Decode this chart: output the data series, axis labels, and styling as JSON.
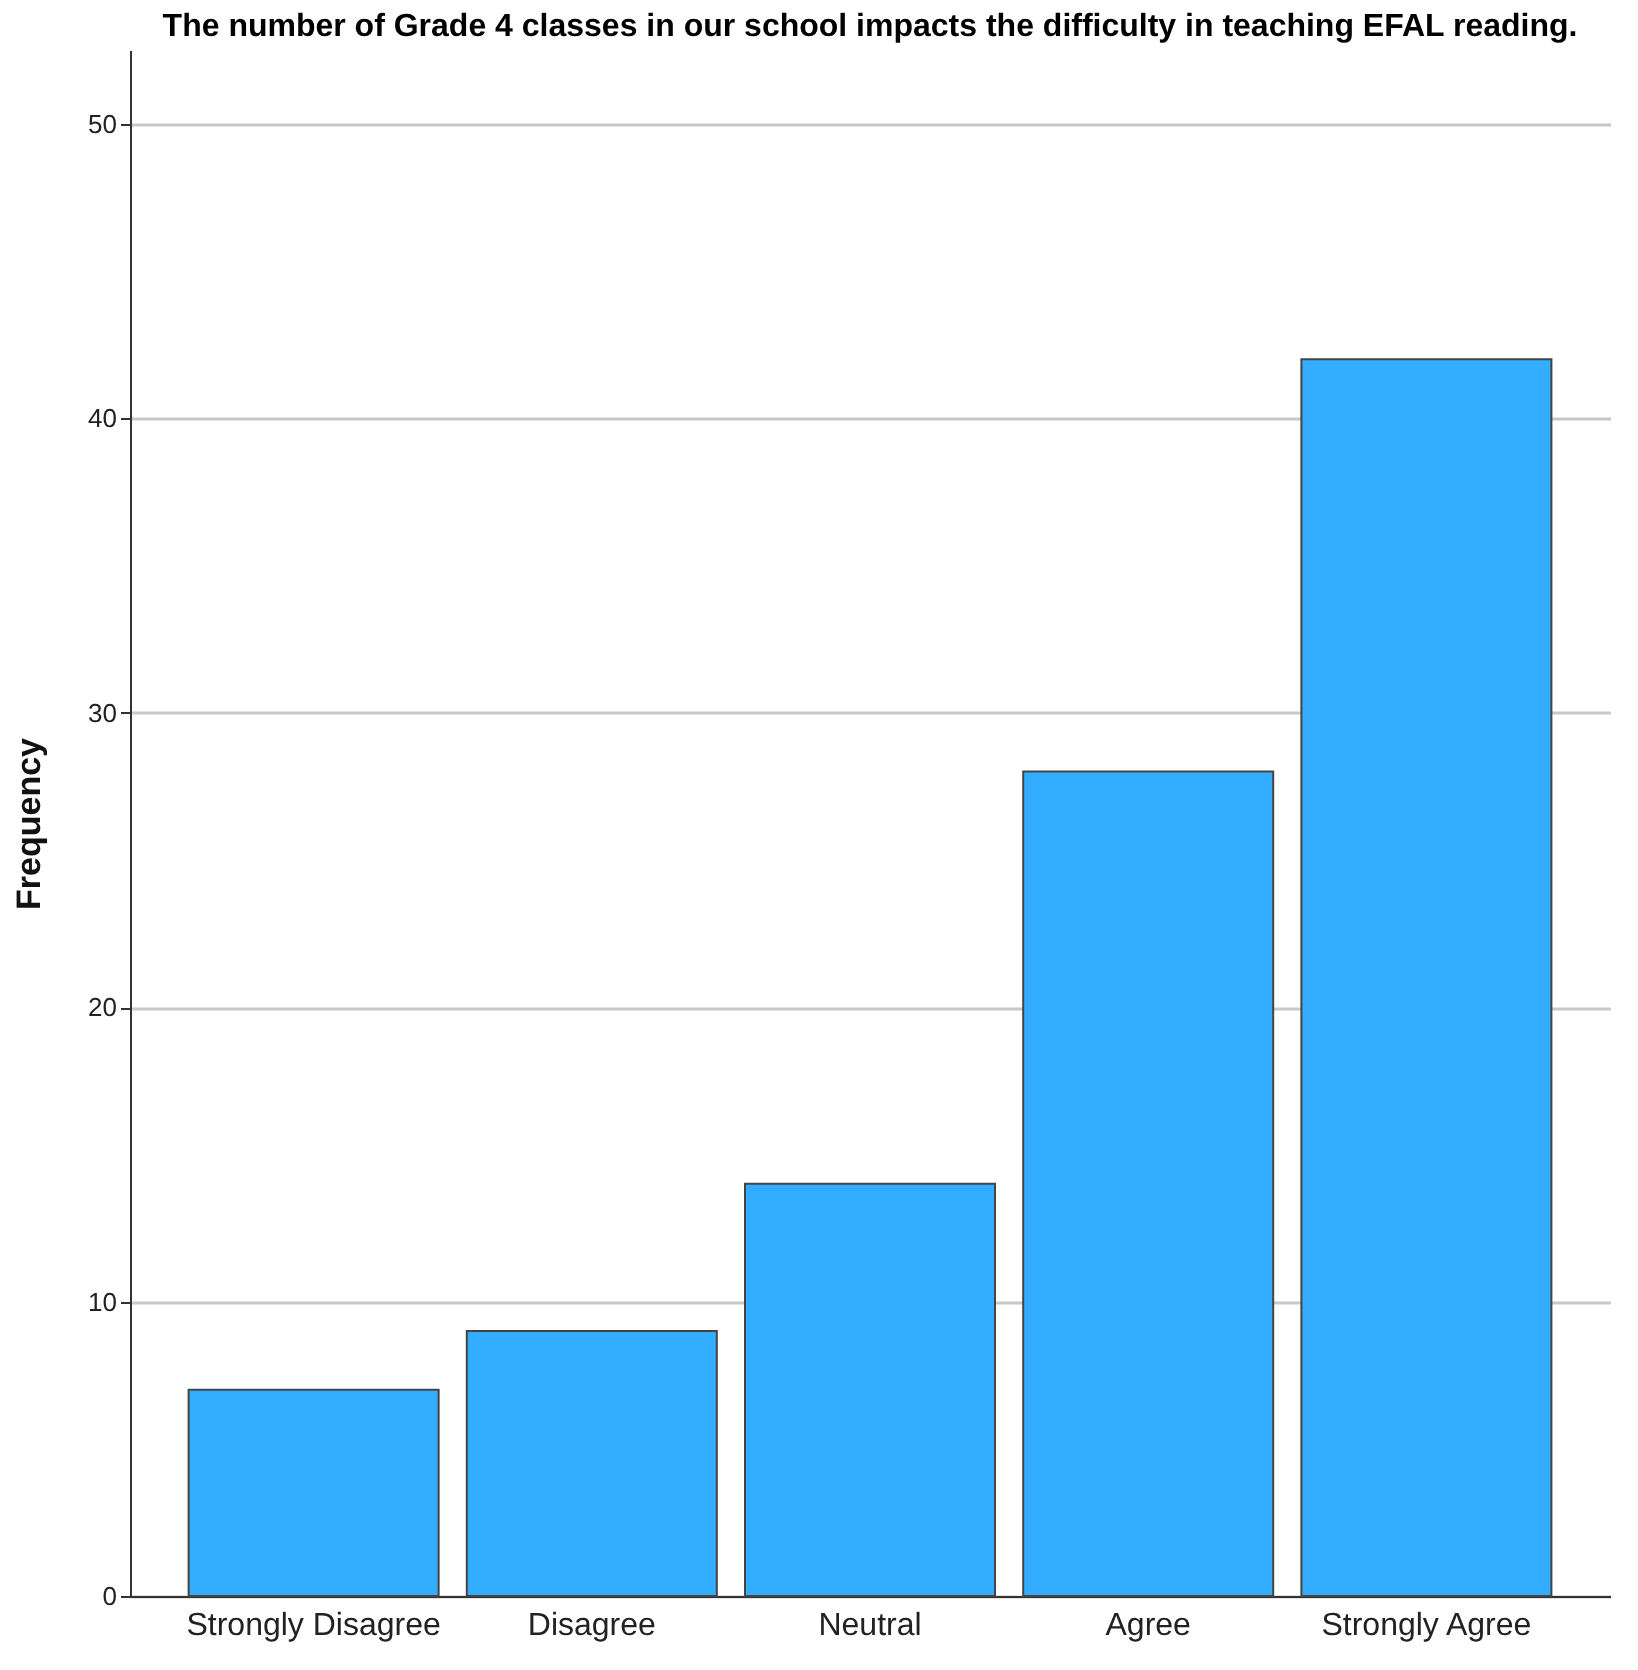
{
  "chart_data": {
    "type": "bar",
    "title": "The number of Grade 4 classes in our school impacts the difficulty in teaching EFAL reading.",
    "ylabel": "Frequency",
    "categories": [
      "Strongly Disagree",
      "Disagree",
      "Neutral",
      "Agree",
      "Strongly Agree"
    ],
    "values": [
      7,
      9,
      14,
      28,
      42
    ],
    "color": "#33adff",
    "ylim": [
      0,
      52.5
    ],
    "yticks": [
      0,
      10,
      20,
      30,
      40,
      50
    ],
    "grid": "y"
  }
}
